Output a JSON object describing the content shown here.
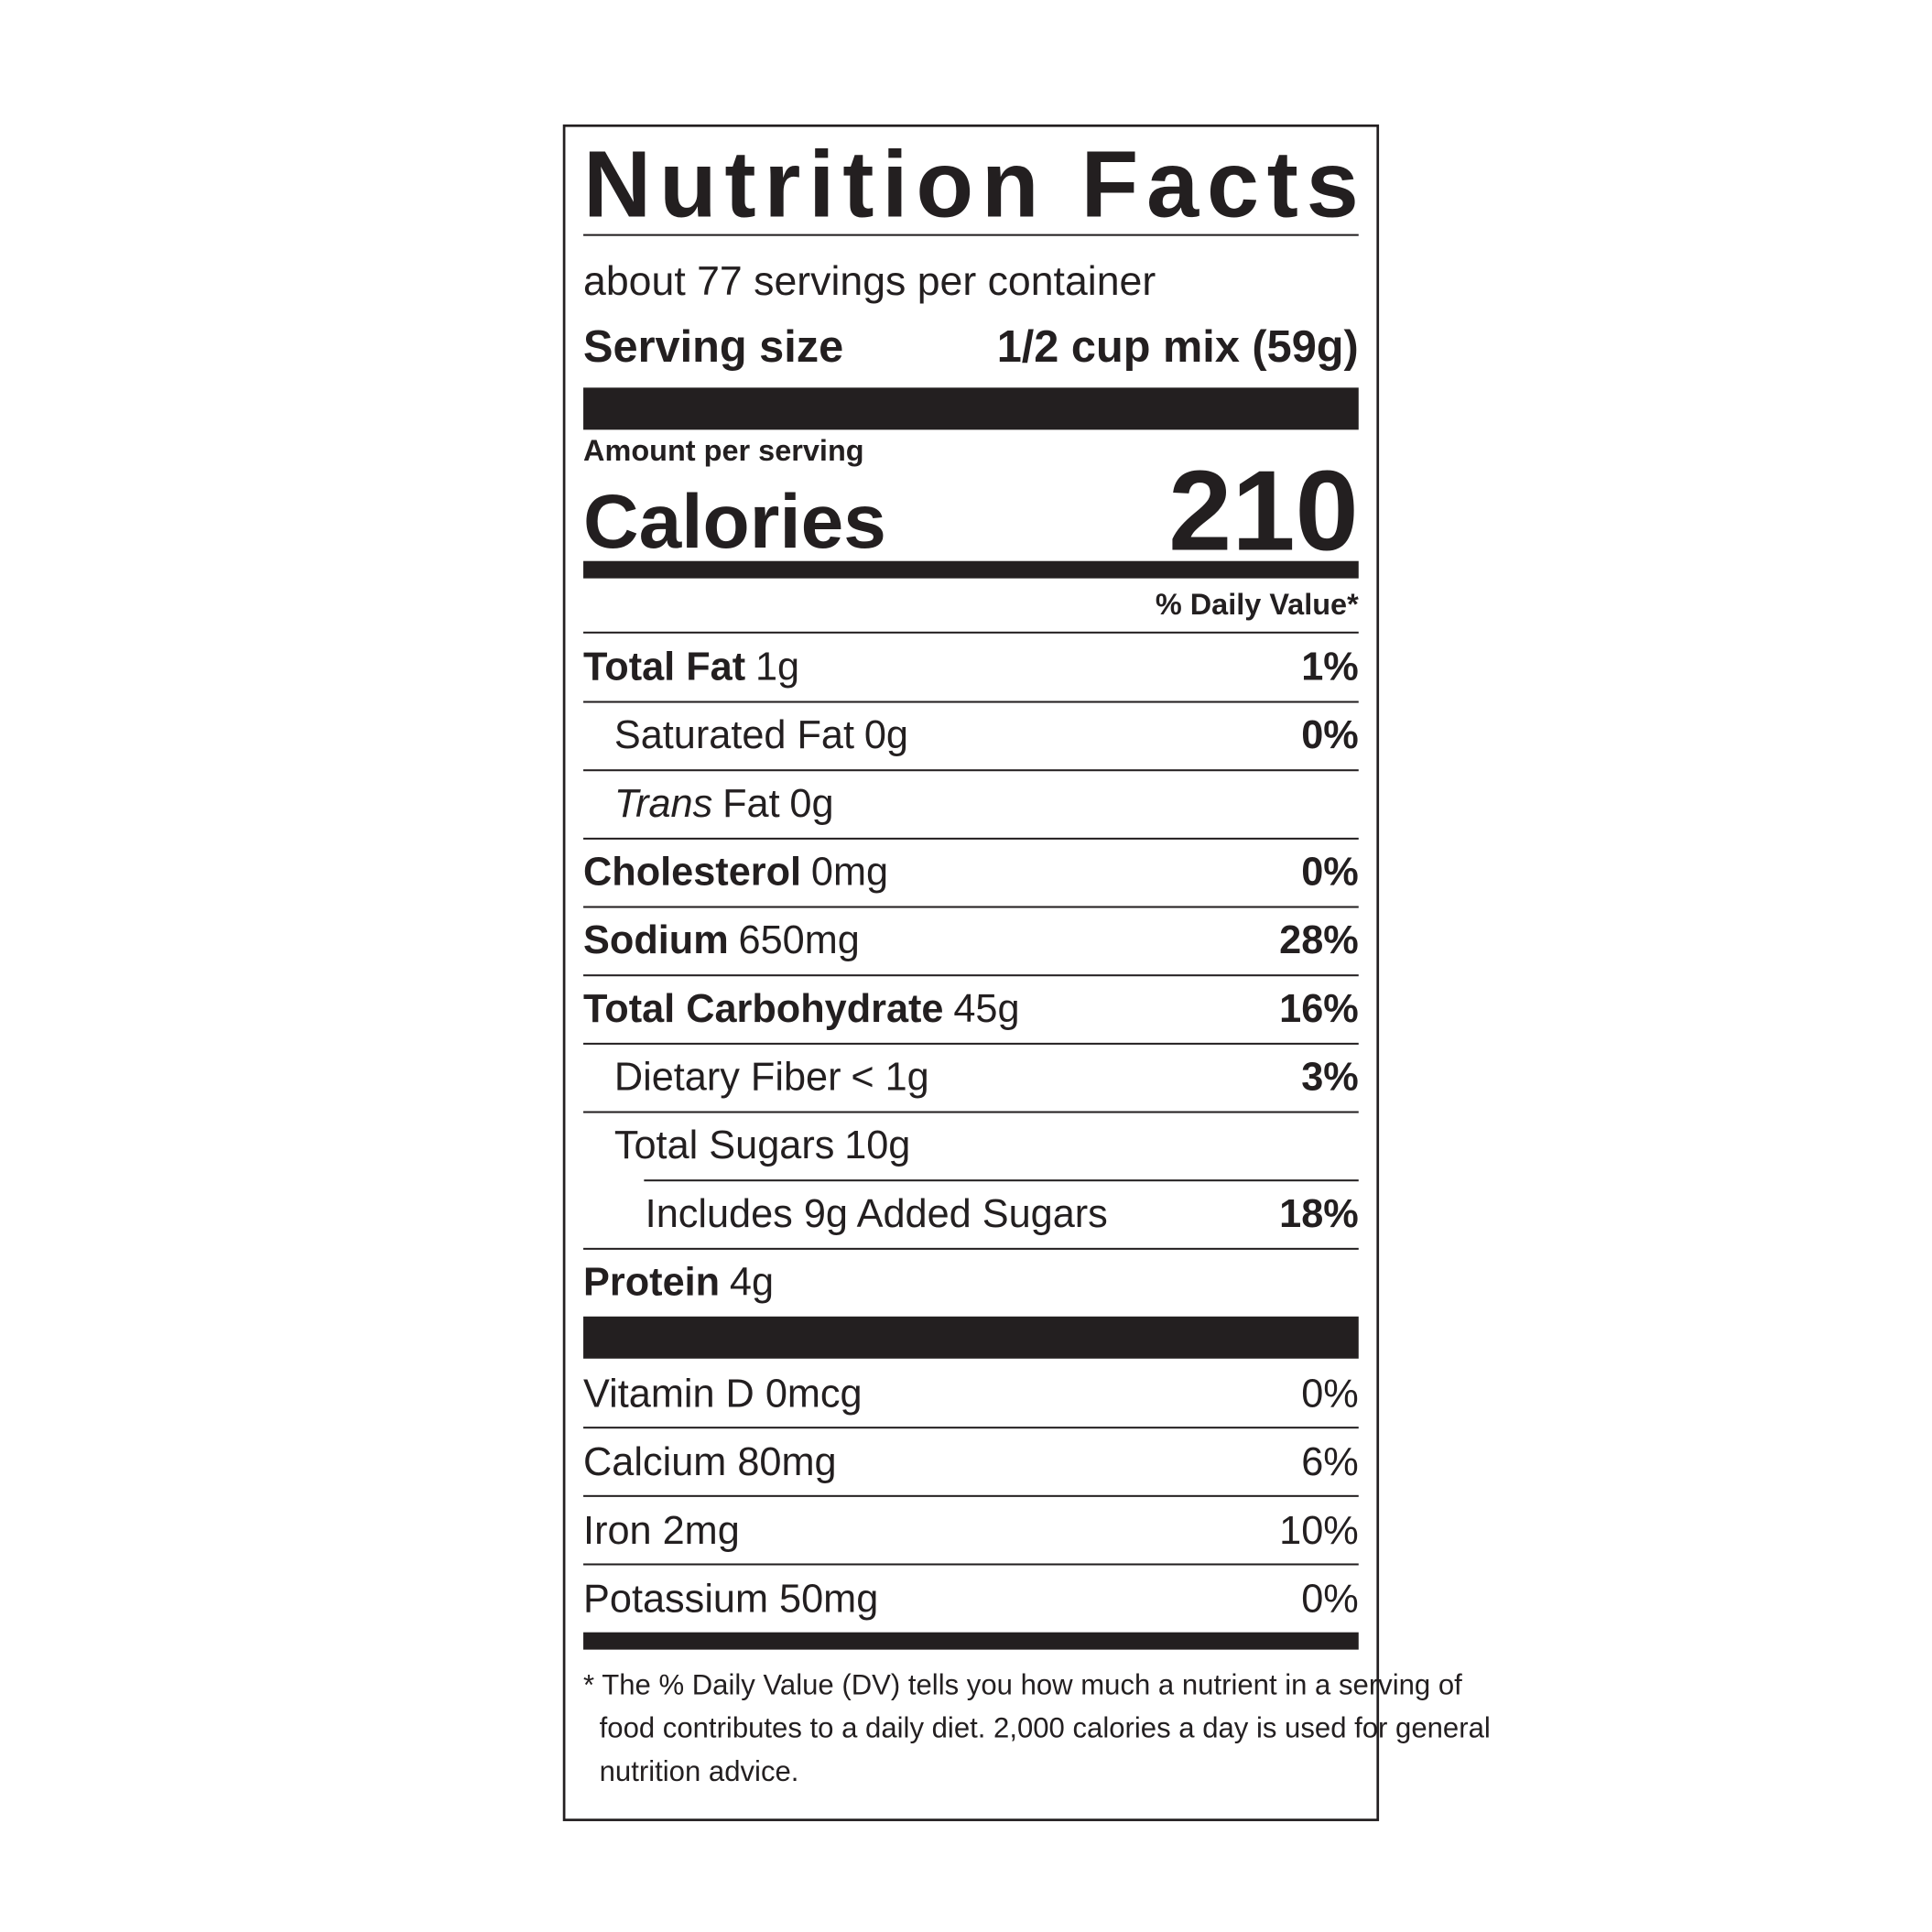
{
  "header": {
    "title": "Nutrition Facts",
    "servings": "about 77 servings per container",
    "serving_size_label": "Serving size",
    "serving_size_value": "1/2 cup mix (59g)",
    "amount_per_serving": "Amount per serving",
    "calories_label": "Calories",
    "calories": "210",
    "daily_value_header": "% Daily Value*"
  },
  "nutrients": [
    {
      "label": "Total Fat",
      "amount": "1g",
      "dv": "1%"
    },
    {
      "label": "Saturated Fat",
      "amount": "0g",
      "dv": "0%"
    },
    {
      "label_italic": "Trans",
      "label": "Fat",
      "amount": "0g"
    },
    {
      "label": "Cholesterol",
      "amount": "0mg",
      "dv": "0%"
    },
    {
      "label": "Sodium",
      "amount": "650mg",
      "dv": "28%"
    },
    {
      "label": "Total Carbohydrate",
      "amount": "45g",
      "dv": "16%"
    },
    {
      "label": "Dietary Fiber",
      "amount": "< 1g",
      "dv": "3%"
    },
    {
      "label": "Total Sugars",
      "amount": "10g"
    },
    {
      "label": "Includes 9g Added Sugars",
      "dv": "18%"
    },
    {
      "label": "Protein",
      "amount": "4g"
    }
  ],
  "vitamins": [
    {
      "label": "Vitamin D 0mcg",
      "dv": "0%"
    },
    {
      "label": "Calcium 80mg",
      "dv": "6%"
    },
    {
      "label": "Iron 2mg",
      "dv": "10%"
    },
    {
      "label": "Potassium 50mg",
      "dv": "0%"
    }
  ],
  "footnote": [
    "* The % Daily Value (DV) tells you how much a nutrient in a serving of",
    "food contributes to a daily diet. 2,000 calories a day is used for general",
    "nutrition advice."
  ]
}
